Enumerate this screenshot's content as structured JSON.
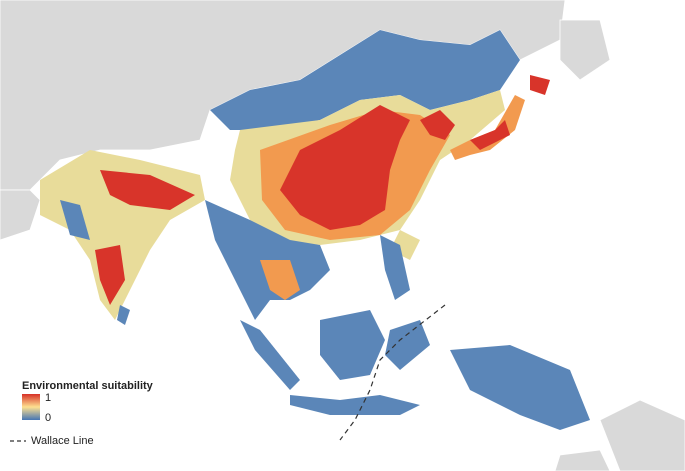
{
  "legend": {
    "title": "Environmental suitability",
    "colors": [
      "#d73027",
      "#fee090",
      "#4575b4"
    ],
    "ticks": [
      1,
      0
    ]
  },
  "wallace_line": {
    "label": "Wallace Line"
  }
}
